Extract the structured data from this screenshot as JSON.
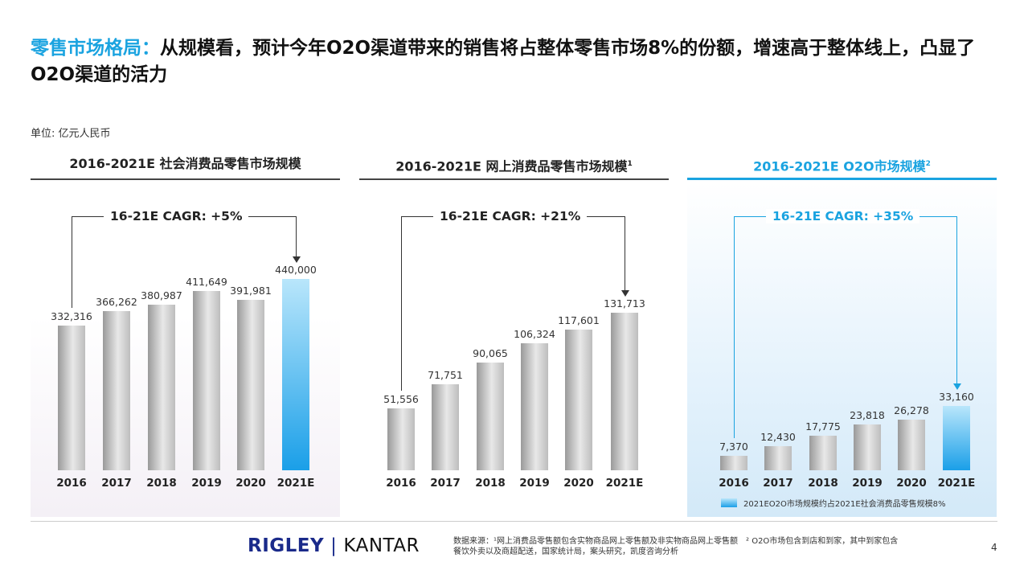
{
  "title": {
    "highlight": "零售市场格局：",
    "text": "从规模看，预计今年O2O渠道带来的销售将占整体零售市场8%的份额，增速高于整体线上，凸显了O2O渠道的活力"
  },
  "unit": "单位: 亿元人民币",
  "colors": {
    "accent": "#1aa3e0",
    "bar_gray": "#c8c8c8",
    "bar_highlight": "#1a9fe8"
  },
  "chart_data": [
    {
      "type": "bar",
      "title": "2016-2021E 社会消费品零售市场规模",
      "footnote_mark": "",
      "cagr": "16-21E CAGR: +5%",
      "categories": [
        "2016",
        "2017",
        "2018",
        "2019",
        "2020",
        "2021E"
      ],
      "values": [
        332316,
        366262,
        380987,
        411649,
        391981,
        440000
      ],
      "labels": [
        "332,316",
        "366,262",
        "380,987",
        "411,649",
        "391,981",
        "440,000"
      ],
      "highlight": "2021E"
    },
    {
      "type": "bar",
      "title": "2016-2021E 网上消费品零售市场规模",
      "footnote_mark": "1",
      "cagr": "16-21E CAGR: +21%",
      "categories": [
        "2016",
        "2017",
        "2018",
        "2019",
        "2020",
        "2021E"
      ],
      "values": [
        51556,
        71751,
        90065,
        106324,
        117601,
        131713
      ],
      "labels": [
        "51,556",
        "71,751",
        "90,065",
        "106,324",
        "117,601",
        "131,713"
      ],
      "highlight": ""
    },
    {
      "type": "bar",
      "title": "2016-2021E O2O市场规模",
      "footnote_mark": "2",
      "cagr": "16-21E CAGR: +35%",
      "categories": [
        "2016",
        "2017",
        "2018",
        "2019",
        "2020",
        "2021E"
      ],
      "values": [
        7370,
        12430,
        17775,
        23818,
        26278,
        33160
      ],
      "labels": [
        "7,370",
        "12,430",
        "17,775",
        "23,818",
        "26,278",
        "33,160"
      ],
      "highlight": "2021E",
      "legend": "2021EO2O市场规模约占2021E社会消费品零售规模8%"
    }
  ],
  "footer": {
    "logo_left": "RIGLEY",
    "logo_right": "KANTAR",
    "notes_line1": "数据来源：¹网上消费品零售额包含实物商品网上零售额及非实物商品网上零售额　² O2O市场包含到店和到家，其中到家包含",
    "notes_line2": "餐饮外卖以及商超配送，国家统计局，案头研究，凯度咨询分析",
    "page": "4"
  }
}
